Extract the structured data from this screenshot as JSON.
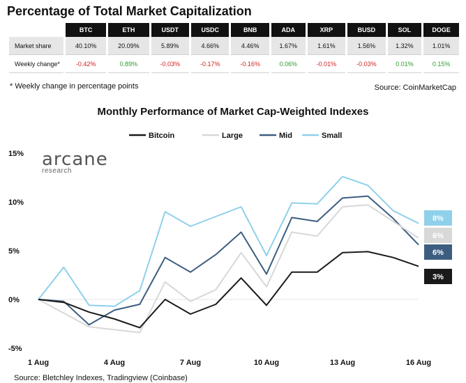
{
  "title": "Percentage of Total Market Capitalization",
  "table": {
    "columns": [
      "BTC",
      "ETH",
      "USDT",
      "USDC",
      "BNB",
      "ADA",
      "XRP",
      "BUSD",
      "SOL",
      "DOGE"
    ],
    "rows": [
      {
        "label": "Market share",
        "values": [
          "40.10%",
          "20.09%",
          "5.89%",
          "4.66%",
          "4.46%",
          "1.67%",
          "1.61%",
          "1.56%",
          "1.32%",
          "1.01%"
        ]
      },
      {
        "label": "Weekly change*",
        "values": [
          "-0.42%",
          "0.89%",
          "-0.03%",
          "-0.17%",
          "-0.16%",
          "0.06%",
          "-0.01%",
          "-0.03%",
          "0.01%",
          "0.15%"
        ]
      }
    ]
  },
  "footnote": "* Weekly change in percentage points",
  "source_top": "Source: CoinMarketCap",
  "source_bottom": "Source: Bletchley Indexes, Tradingview (Coinbase)",
  "logo": {
    "name": "arcane",
    "sub": "research"
  },
  "colors": {
    "bitcoin": "#1a1a1a",
    "large": "#d8d8d8",
    "mid": "#3d5d80",
    "small": "#8fd0ea",
    "neg": "#d32020",
    "pos": "#2e9a2e"
  },
  "chart_data": {
    "type": "line",
    "title": "Monthly Performance of Market Cap-Weighted Indexes",
    "xlabel": "",
    "ylabel": "",
    "xlim": [
      1,
      16
    ],
    "ylim": [
      -5,
      15
    ],
    "y_ticks": [
      -5,
      0,
      5,
      10,
      15
    ],
    "y_tick_labels": [
      "-5%",
      "0%",
      "5%",
      "10%",
      "15%"
    ],
    "x_ticks": [
      1,
      4,
      7,
      10,
      13,
      16
    ],
    "x_tick_labels": [
      "1 Aug",
      "4 Aug",
      "7 Aug",
      "10 Aug",
      "13 Aug",
      "16 Aug"
    ],
    "x": [
      1,
      2,
      3,
      4,
      5,
      6,
      7,
      8,
      9,
      10,
      11,
      12,
      13,
      14,
      15,
      16
    ],
    "legend_position": "top",
    "series": [
      {
        "name": "Bitcoin",
        "color": "#1a1a1a",
        "end_label": "3%",
        "values": [
          0,
          -0.3,
          -1.3,
          -2.0,
          -2.9,
          0.0,
          -1.5,
          -0.5,
          2.2,
          -0.6,
          2.8,
          2.8,
          4.8,
          4.9,
          4.3,
          3.4
        ]
      },
      {
        "name": "Large",
        "color": "#d8d8d8",
        "end_label": "6%",
        "values": [
          0,
          -1.4,
          -2.8,
          -3.1,
          -3.4,
          1.8,
          -0.2,
          1.0,
          4.8,
          1.3,
          6.9,
          6.5,
          9.5,
          9.7,
          8.0,
          6.3
        ]
      },
      {
        "name": "Mid",
        "color": "#3d5d80",
        "end_label": "6%",
        "values": [
          0,
          -0.2,
          -2.6,
          -1.1,
          -0.5,
          4.3,
          2.8,
          4.6,
          6.9,
          2.6,
          8.4,
          8.0,
          10.4,
          10.6,
          8.3,
          5.6
        ]
      },
      {
        "name": "Small",
        "color": "#8fd0ea",
        "end_label": "8%",
        "values": [
          0,
          3.3,
          -0.6,
          -0.7,
          0.9,
          9.0,
          7.5,
          8.5,
          9.5,
          4.5,
          9.9,
          9.8,
          12.6,
          11.7,
          9.1,
          7.8
        ]
      }
    ]
  }
}
